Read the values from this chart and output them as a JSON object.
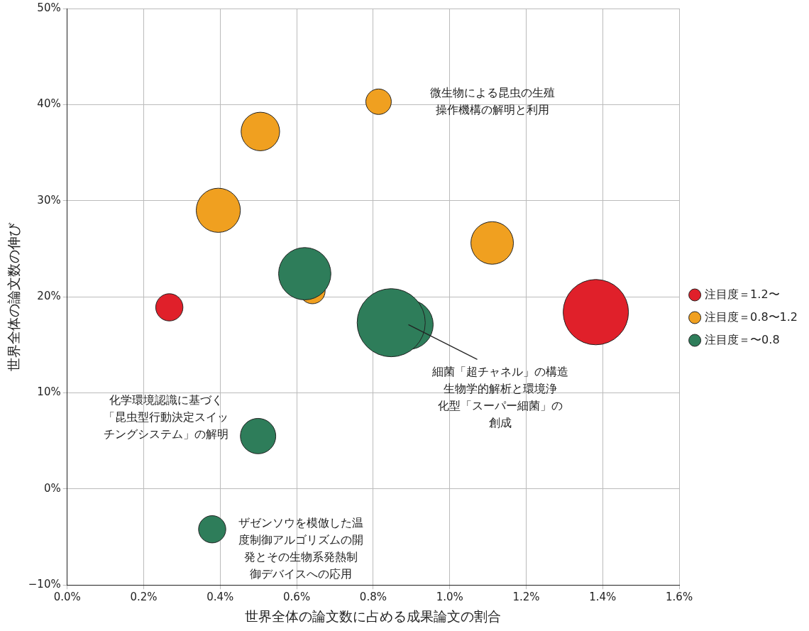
{
  "chart_data": {
    "type": "bubble",
    "xlabel": "世界全体の論文数に占める成果論文の割合",
    "ylabel": "世界全体の論文数の伸び",
    "xlim": [
      0,
      1.6
    ],
    "xticks": [
      {
        "value": 0,
        "label": "0.0%"
      },
      {
        "value": 0.2,
        "label": "0.2%"
      },
      {
        "value": 0.4,
        "label": "0.4%"
      },
      {
        "value": 0.6,
        "label": "0.6%"
      },
      {
        "value": 0.8,
        "label": "0.8%"
      },
      {
        "value": 1.0,
        "label": "1.0%"
      },
      {
        "value": 1.2,
        "label": "1.2%"
      },
      {
        "value": 1.4,
        "label": "1.4%"
      },
      {
        "value": 1.6,
        "label": "1.6%"
      }
    ],
    "ylim": [
      -10,
      50
    ],
    "yticks": [
      {
        "value": -10,
        "label": "−10%"
      },
      {
        "value": 0,
        "label": "0%"
      },
      {
        "value": 10,
        "label": "10%"
      },
      {
        "value": 20,
        "label": "20%"
      },
      {
        "value": 30,
        "label": "30%"
      },
      {
        "value": 40,
        "label": "40%"
      },
      {
        "value": 50,
        "label": "50%"
      }
    ],
    "grid": true,
    "legend": "right",
    "series": [
      {
        "name": "注目度＝1.2〜",
        "color": "#e0202a",
        "x": [
          0.267,
          1.382
        ],
        "values": [
          18.9,
          18.4
        ],
        "sizes": [
          0.16,
          0.92
        ]
      },
      {
        "name": "注目度＝0.8〜1.2",
        "color": "#f0a020",
        "x": [
          0.814,
          0.505,
          0.395,
          1.111,
          0.641
        ],
        "values": [
          40.3,
          37.2,
          29.0,
          25.6,
          20.6
        ],
        "sizes": [
          0.14,
          0.32,
          0.42,
          0.39,
          0.14
        ]
      },
      {
        "name": "注目度＝〜0.8",
        "color": "#2e7d5a",
        "x": [
          0.621,
          0.892,
          0.847,
          0.499,
          0.379
        ],
        "values": [
          22.4,
          17.1,
          17.3,
          5.5,
          -4.2
        ],
        "sizes": [
          0.59,
          0.53,
          1,
          0.27,
          0.16
        ]
      }
    ],
    "annotations": [
      "微生物による昆虫の生殖操作機構の解明と利用",
      {
        "text": "細菌「超チャネル」の構造生物学的解析と環境浄化型「スーパー細菌」の創成",
        "x": 0.892,
        "y": 17.1
      },
      {
        "text": "化学環境認識に基づく「昆虫型行動決定スイッチングシステム」の解明",
        "x": 0.499,
        "y": 5.5
      },
      {
        "text": "ザゼンソウを模倣した温度制御アルゴリズムの開発とその生物系発熱制御デバイスへの応用",
        "x": 0.379,
        "y": -4.2
      }
    ]
  }
}
